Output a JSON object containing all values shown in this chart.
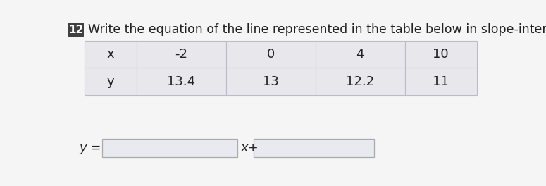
{
  "question_number": "12",
  "question_text": "Write the equation of the line represented in the table below in slope-intercept form.",
  "table_headers": [
    "x",
    "-2",
    "0",
    "4",
    "10"
  ],
  "table_row2": [
    "y",
    "13.4",
    "13",
    "12.2",
    "11"
  ],
  "equation_label": "y =",
  "equation_mid": "x+",
  "bg_color": "#f5f5f5",
  "table_bg": "#e8e8ec",
  "table_border": "#bbbbcc",
  "number_bg": "#404040",
  "number_text": "#ffffff",
  "main_text_color": "#222222",
  "title_fontsize": 12.5,
  "table_fontsize": 13,
  "eq_fontsize": 13,
  "eq_box_color": "#e8eaf0",
  "eq_box_border": "#aaaaaa"
}
